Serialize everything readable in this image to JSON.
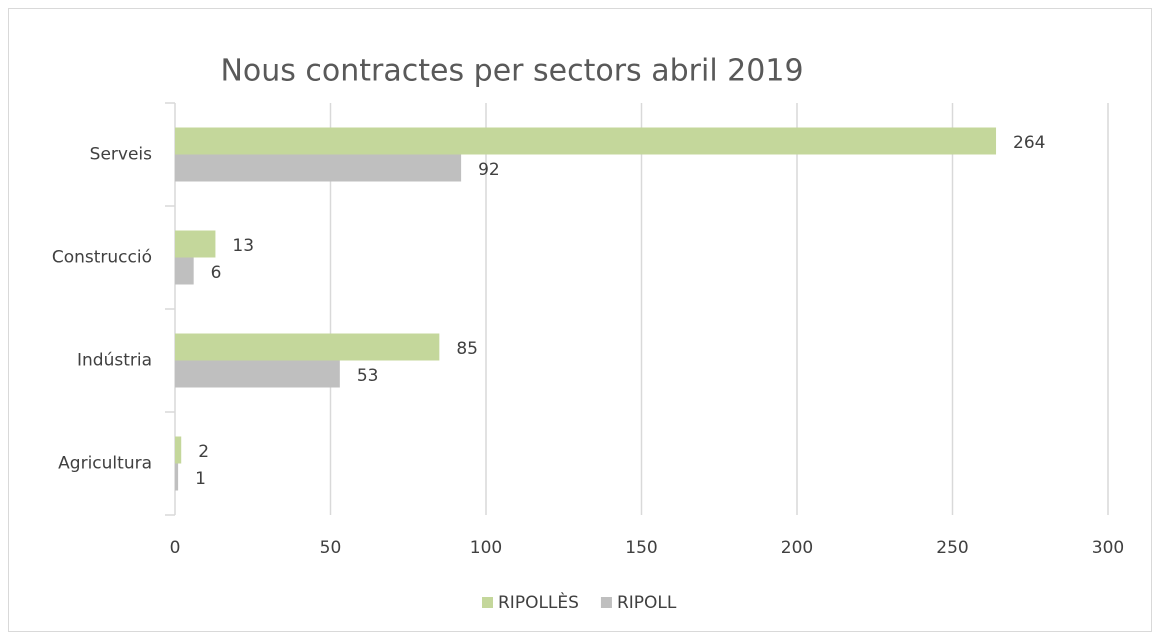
{
  "chart_data": {
    "type": "barh",
    "title": "Nous contractes per sectors abril 2019",
    "categories": [
      "Serveis",
      "Construcció",
      "Indústria",
      "Agricultura"
    ],
    "series": [
      {
        "name": "RIPOLLÈS",
        "color": "#c4d79b",
        "values": [
          264,
          13,
          85,
          2
        ]
      },
      {
        "name": "RIPOLL",
        "color": "#bfbfbf",
        "values": [
          92,
          6,
          53,
          1
        ]
      }
    ],
    "xlim": [
      0,
      300
    ],
    "xticks": [
      0,
      50,
      100,
      150,
      200,
      250,
      300
    ],
    "grid": true,
    "legend": "bottom"
  }
}
